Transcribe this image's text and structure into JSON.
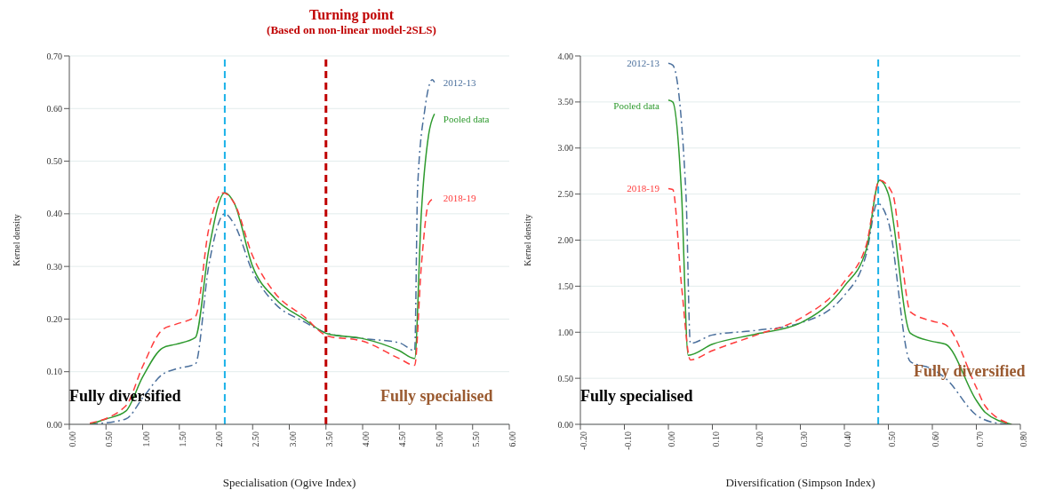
{
  "chart_data": [
    {
      "type": "line",
      "title": "Turning point",
      "subtitle": "(Based on non-linear model-2SLS)",
      "xlabel": "Specialisation (Ogive Index)",
      "ylabel": "Kernel density",
      "annotations": [
        "Fully diversified",
        "Fully specialised"
      ],
      "xlim": [
        0,
        6
      ],
      "xticks": [
        {
          "value": 0,
          "label": "0.00"
        },
        {
          "value": 0.5,
          "label": "0.50"
        },
        {
          "value": 1,
          "label": "1.00"
        },
        {
          "value": 1.5,
          "label": "1.50"
        },
        {
          "value": 2,
          "label": "2.00"
        },
        {
          "value": 2.5,
          "label": "2.50"
        },
        {
          "value": 3,
          "label": "3.00"
        },
        {
          "value": 3.5,
          "label": "3.50"
        },
        {
          "value": 4,
          "label": "4.00"
        },
        {
          "value": 4.5,
          "label": "4.50"
        },
        {
          "value": 5,
          "label": "5.00"
        },
        {
          "value": 5.5,
          "label": "5.50"
        },
        {
          "value": 6,
          "label": "6.00"
        }
      ],
      "ylim": [
        0,
        0.7
      ],
      "yticks": [
        {
          "value": 0,
          "label": "0.00"
        },
        {
          "value": 0.1,
          "label": "0.10"
        },
        {
          "value": 0.2,
          "label": "0.20"
        },
        {
          "value": 0.3,
          "label": "0.30"
        },
        {
          "value": 0.4,
          "label": "0.40"
        },
        {
          "value": 0.5,
          "label": "0.50"
        },
        {
          "value": 0.6,
          "label": "0.60"
        },
        {
          "value": 0.7,
          "label": "0.70"
        }
      ],
      "grid": "y",
      "marker": "none",
      "ref_lines": [
        {
          "axis": "x",
          "value": 2.12,
          "color": "#1ab2e8",
          "line_style": "dashed"
        },
        {
          "axis": "x",
          "value": 3.5,
          "color": "#c00000",
          "line_style": "dashed"
        }
      ],
      "series": [
        {
          "name": "2012-13",
          "color": "#4a6f9c",
          "line_style": "dashdot",
          "x": [
            0.28,
            0.77,
            1.0,
            1.27,
            1.45,
            1.72,
            1.9,
            2.12,
            2.25,
            2.5,
            2.8,
            3.2,
            3.52,
            4.0,
            4.5,
            4.71,
            4.75,
            4.85,
            4.95,
            4.98
          ],
          "values": [
            0.0,
            0.01,
            0.05,
            0.095,
            0.105,
            0.115,
            0.3,
            0.4,
            0.38,
            0.29,
            0.23,
            0.195,
            0.173,
            0.163,
            0.155,
            0.14,
            0.45,
            0.6,
            0.655,
            0.65
          ]
        },
        {
          "name": "Pooled data",
          "color": "#2e9a2e",
          "line_style": "solid",
          "x": [
            0.28,
            0.5,
            0.77,
            1.0,
            1.27,
            1.45,
            1.72,
            1.9,
            2.12,
            2.25,
            2.5,
            2.8,
            3.2,
            3.52,
            4.0,
            4.5,
            4.71,
            4.8,
            4.9,
            4.98
          ],
          "values": [
            0.0,
            0.01,
            0.025,
            0.09,
            0.145,
            0.152,
            0.165,
            0.33,
            0.44,
            0.42,
            0.3,
            0.24,
            0.2,
            0.172,
            0.163,
            0.14,
            0.125,
            0.4,
            0.55,
            0.59
          ]
        },
        {
          "name": "2018-19",
          "color": "#ff3b3b",
          "line_style": "dashed",
          "x": [
            0.28,
            0.77,
            1.0,
            1.27,
            1.45,
            1.72,
            1.9,
            2.1,
            2.25,
            2.5,
            2.8,
            3.2,
            3.52,
            4.0,
            4.5,
            4.71,
            4.8,
            4.9,
            4.98
          ],
          "values": [
            0.002,
            0.035,
            0.11,
            0.18,
            0.19,
            0.205,
            0.37,
            0.44,
            0.42,
            0.32,
            0.25,
            0.205,
            0.168,
            0.158,
            0.125,
            0.112,
            0.3,
            0.42,
            0.43
          ]
        }
      ]
    },
    {
      "type": "line",
      "xlabel": "Diversification (Simpson Index)",
      "ylabel": "Kernel density",
      "annotations": [
        "Fully specialised",
        "Fully diversified"
      ],
      "xlim": [
        -0.2,
        0.8
      ],
      "xticks": [
        {
          "value": -0.2,
          "label": "-0.20"
        },
        {
          "value": -0.1,
          "label": "-0.10"
        },
        {
          "value": 0,
          "label": "0.00"
        },
        {
          "value": 0.1,
          "label": "0.10"
        },
        {
          "value": 0.2,
          "label": "0.20"
        },
        {
          "value": 0.3,
          "label": "0.30"
        },
        {
          "value": 0.4,
          "label": "0.40"
        },
        {
          "value": 0.5,
          "label": "0.50"
        },
        {
          "value": 0.6,
          "label": "0.60"
        },
        {
          "value": 0.7,
          "label": "0.70"
        },
        {
          "value": 0.8,
          "label": "0.80"
        }
      ],
      "ylim": [
        0,
        4
      ],
      "yticks": [
        {
          "value": 0,
          "label": "0.00"
        },
        {
          "value": 0.5,
          "label": "0.50"
        },
        {
          "value": 1,
          "label": "1.00"
        },
        {
          "value": 1.5,
          "label": "1.50"
        },
        {
          "value": 2,
          "label": "2.00"
        },
        {
          "value": 2.5,
          "label": "2.50"
        },
        {
          "value": 3,
          "label": "3.00"
        },
        {
          "value": 3.5,
          "label": "3.50"
        },
        {
          "value": 4,
          "label": "4.00"
        }
      ],
      "grid": "y",
      "marker": "none",
      "ref_lines": [
        {
          "axis": "x",
          "value": 0.477,
          "color": "#1ab2e8",
          "line_style": "dashed"
        }
      ],
      "series": [
        {
          "name": "2012-13",
          "color": "#4a6f9c",
          "line_style": "dashdot",
          "x": [
            0.0,
            0.01,
            0.04,
            0.05,
            0.1,
            0.2,
            0.3,
            0.4,
            0.45,
            0.475,
            0.5,
            0.55,
            0.6,
            0.63,
            0.7,
            0.75,
            0.78
          ],
          "values": [
            3.92,
            3.9,
            2.5,
            0.88,
            0.97,
            1.02,
            1.1,
            1.4,
            1.85,
            2.4,
            2.2,
            0.68,
            0.6,
            0.5,
            0.1,
            0.01,
            0.0
          ]
        },
        {
          "name": "Pooled data",
          "color": "#2e9a2e",
          "line_style": "solid",
          "x": [
            0.0,
            0.01,
            0.03,
            0.045,
            0.1,
            0.2,
            0.3,
            0.4,
            0.45,
            0.48,
            0.5,
            0.55,
            0.6,
            0.63,
            0.7,
            0.72,
            0.78
          ],
          "values": [
            3.52,
            3.5,
            2.5,
            0.75,
            0.87,
            0.98,
            1.1,
            1.5,
            1.9,
            2.65,
            2.5,
            0.99,
            0.9,
            0.87,
            0.26,
            0.13,
            0.0
          ]
        },
        {
          "name": "2018-19",
          "color": "#ff3b3b",
          "line_style": "dashed",
          "x": [
            0.0,
            0.01,
            0.03,
            0.05,
            0.1,
            0.2,
            0.3,
            0.4,
            0.45,
            0.48,
            0.51,
            0.53,
            0.55,
            0.6,
            0.63,
            0.7,
            0.72,
            0.78
          ],
          "values": [
            2.56,
            2.55,
            1.5,
            0.7,
            0.8,
            0.97,
            1.15,
            1.55,
            1.95,
            2.65,
            2.5,
            1.8,
            1.22,
            1.12,
            1.08,
            0.4,
            0.2,
            0.0
          ]
        }
      ]
    }
  ]
}
